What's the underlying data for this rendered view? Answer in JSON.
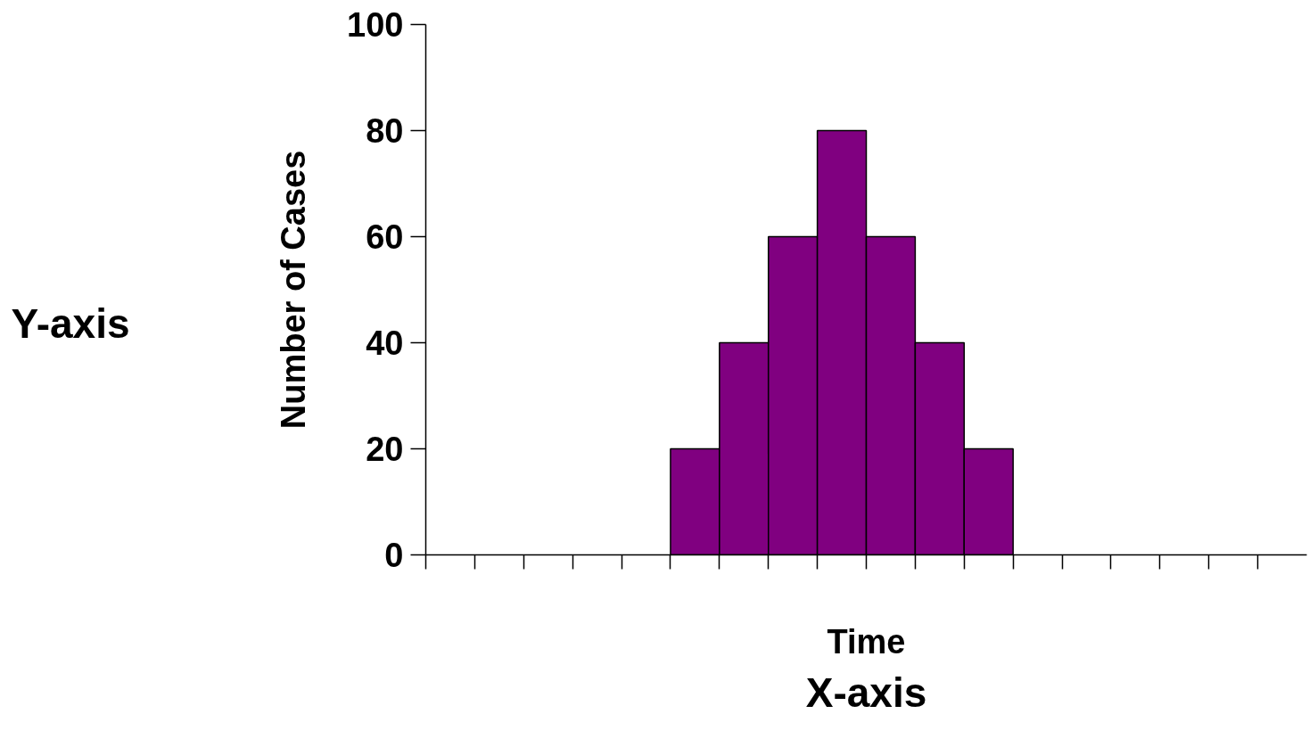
{
  "chart_data": {
    "type": "bar",
    "categories": [
      null,
      null,
      null,
      null,
      null,
      null,
      null,
      null,
      null,
      null,
      null,
      null,
      null,
      null,
      null,
      null,
      null,
      null
    ],
    "values": [
      null,
      null,
      null,
      null,
      null,
      20,
      40,
      60,
      80,
      60,
      40,
      20,
      null,
      null,
      null,
      null,
      null,
      null
    ],
    "color": "#800080",
    "xlabel": "Time",
    "ylabel": "Number of Cases",
    "ylim": [
      0,
      100
    ],
    "yticks": [
      0,
      20,
      40,
      60,
      80,
      100
    ],
    "annotations": [
      "Y-axis",
      "X-axis"
    ],
    "grid": false
  }
}
